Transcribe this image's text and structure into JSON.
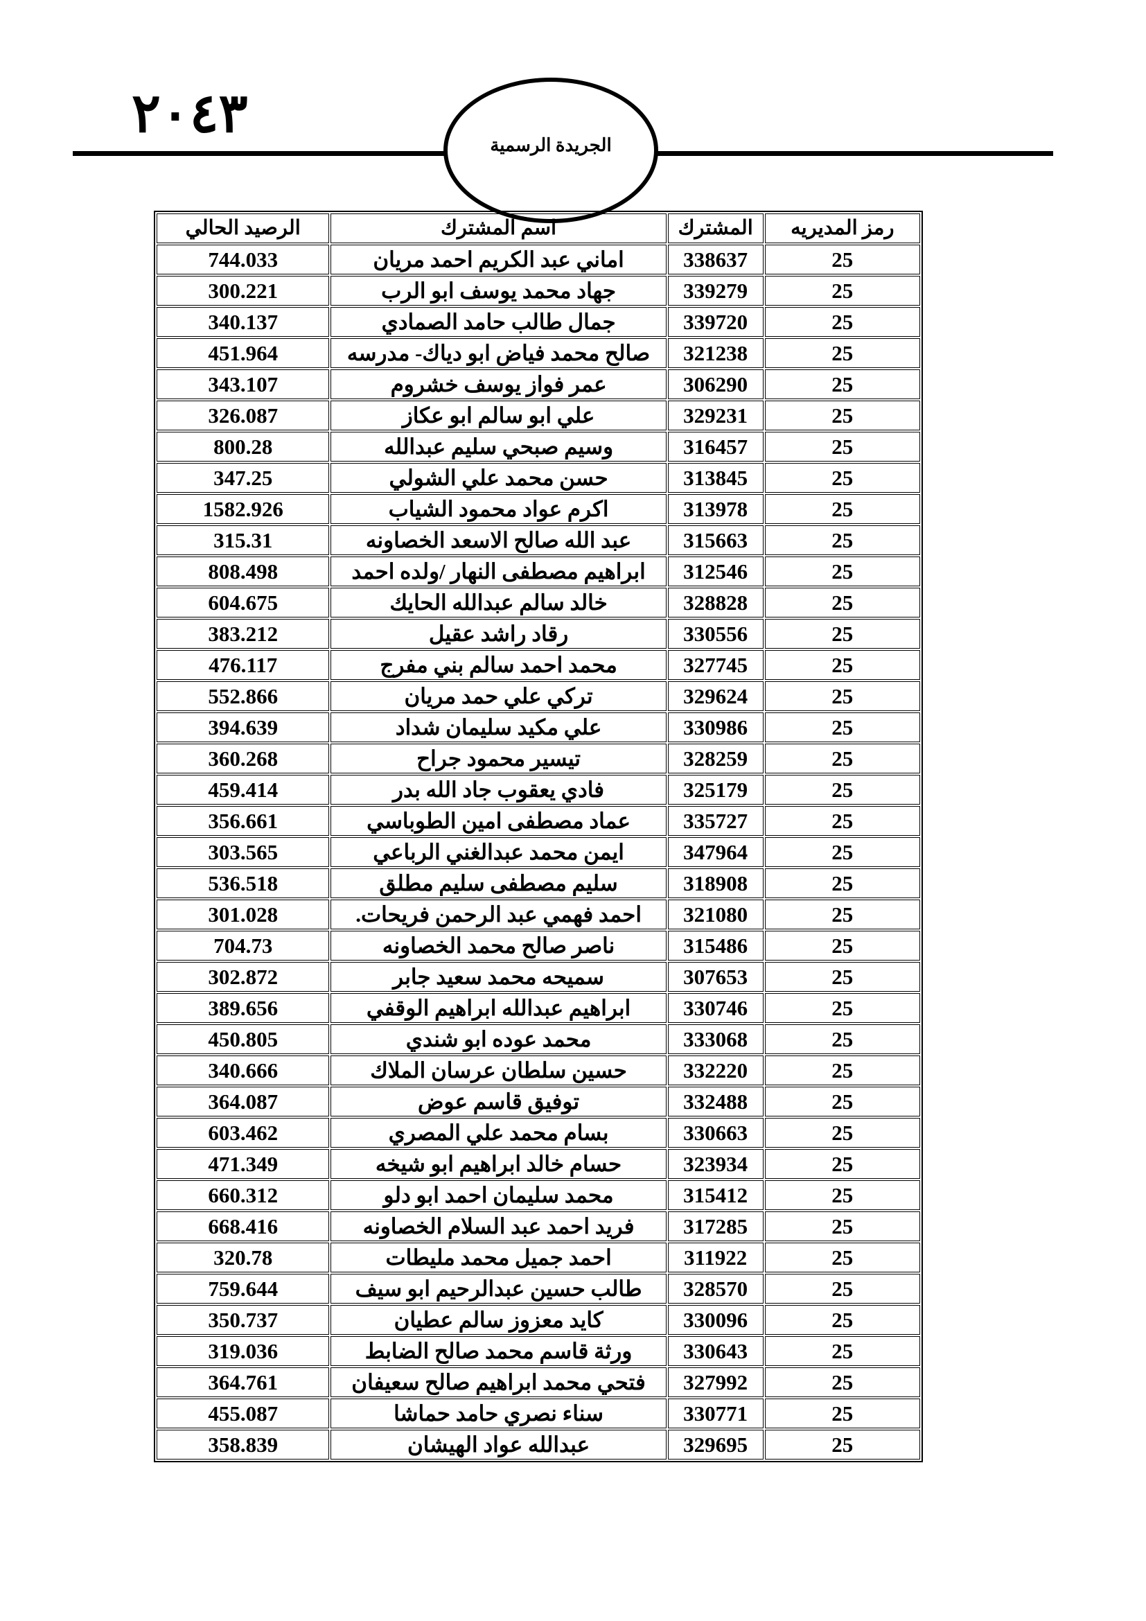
{
  "header": {
    "page_number": "٢٠٤٣",
    "publication": "الجريدة الرسمية"
  },
  "table": {
    "columns": [
      "رمز المديريه",
      "المشترك",
      "اسم المشترك",
      "الرصيد الحالي"
    ],
    "rows": [
      [
        "25",
        "338637",
        "اماني عبد الكريم احمد مريان",
        "744.033"
      ],
      [
        "25",
        "339279",
        "جهاد محمد يوسف ابو الرب",
        "300.221"
      ],
      [
        "25",
        "339720",
        "جمال طالب حامد الصمادي",
        "340.137"
      ],
      [
        "25",
        "321238",
        "صالح محمد فياض ابو دياك- مدرسه",
        "451.964"
      ],
      [
        "25",
        "306290",
        "عمر فواز يوسف خشروم",
        "343.107"
      ],
      [
        "25",
        "329231",
        "علي ابو سالم ابو عكاز",
        "326.087"
      ],
      [
        "25",
        "316457",
        "وسيم صبحي سليم عبدالله",
        "800.28"
      ],
      [
        "25",
        "313845",
        "حسن محمد علي الشولي",
        "347.25"
      ],
      [
        "25",
        "313978",
        "اكرم عواد محمود الشياب",
        "1582.926"
      ],
      [
        "25",
        "315663",
        "عبد الله صالح الاسعد الخصاونه",
        "315.31"
      ],
      [
        "25",
        "312546",
        "ابراهيم مصطفى النهار /ولده احمد",
        "808.498"
      ],
      [
        "25",
        "328828",
        "خالد سالم عبدالله الحايك",
        "604.675"
      ],
      [
        "25",
        "330556",
        "رقاد راشد عقيل",
        "383.212"
      ],
      [
        "25",
        "327745",
        "محمد احمد سالم بني مفرج",
        "476.117"
      ],
      [
        "25",
        "329624",
        "تركي علي حمد مريان",
        "552.866"
      ],
      [
        "25",
        "330986",
        "علي مكيد سليمان شداد",
        "394.639"
      ],
      [
        "25",
        "328259",
        "تيسير محمود جراح",
        "360.268"
      ],
      [
        "25",
        "325179",
        "فادي يعقوب جاد الله بدر",
        "459.414"
      ],
      [
        "25",
        "335727",
        "عماد مصطفى امين الطوباسي",
        "356.661"
      ],
      [
        "25",
        "347964",
        "ايمن محمد عبدالغني الرباعي",
        "303.565"
      ],
      [
        "25",
        "318908",
        "سليم مصطفى سليم مطلق",
        "536.518"
      ],
      [
        "25",
        "321080",
        "احمد فهمي عبد الرحمن فريحات.",
        "301.028"
      ],
      [
        "25",
        "315486",
        "ناصر صالح محمد الخصاونه",
        "704.73"
      ],
      [
        "25",
        "307653",
        "سميحه محمد سعيد جابر",
        "302.872"
      ],
      [
        "25",
        "330746",
        "ابراهيم عبدالله ابراهيم الوقفي",
        "389.656"
      ],
      [
        "25",
        "333068",
        "محمد عوده ابو شندي",
        "450.805"
      ],
      [
        "25",
        "332220",
        "حسين سلطان عرسان الملاك",
        "340.666"
      ],
      [
        "25",
        "332488",
        "توفيق قاسم عوض",
        "364.087"
      ],
      [
        "25",
        "330663",
        "بسام محمد علي المصري",
        "603.462"
      ],
      [
        "25",
        "323934",
        "حسام خالد ابراهيم ابو شيخه",
        "471.349"
      ],
      [
        "25",
        "315412",
        "محمد سليمان احمد ابو دلو",
        "660.312"
      ],
      [
        "25",
        "317285",
        "فريد احمد عبد السلام الخصاونه",
        "668.416"
      ],
      [
        "25",
        "311922",
        "احمد جميل محمد مليطات",
        "320.78"
      ],
      [
        "25",
        "328570",
        "طالب حسين عبدالرحيم ابو سيف",
        "759.644"
      ],
      [
        "25",
        "330096",
        "كايد معزوز سالم عطيان",
        "350.737"
      ],
      [
        "25",
        "330643",
        "ورثة قاسم محمد صالح الضابط",
        "319.036"
      ],
      [
        "25",
        "327992",
        "فتحي محمد ابراهيم صالح سعيفان",
        "364.761"
      ],
      [
        "25",
        "330771",
        "سناء نصري حامد حماشا",
        "455.087"
      ],
      [
        "25",
        "329695",
        "عبدالله عواد الهيشان",
        "358.839"
      ]
    ]
  }
}
